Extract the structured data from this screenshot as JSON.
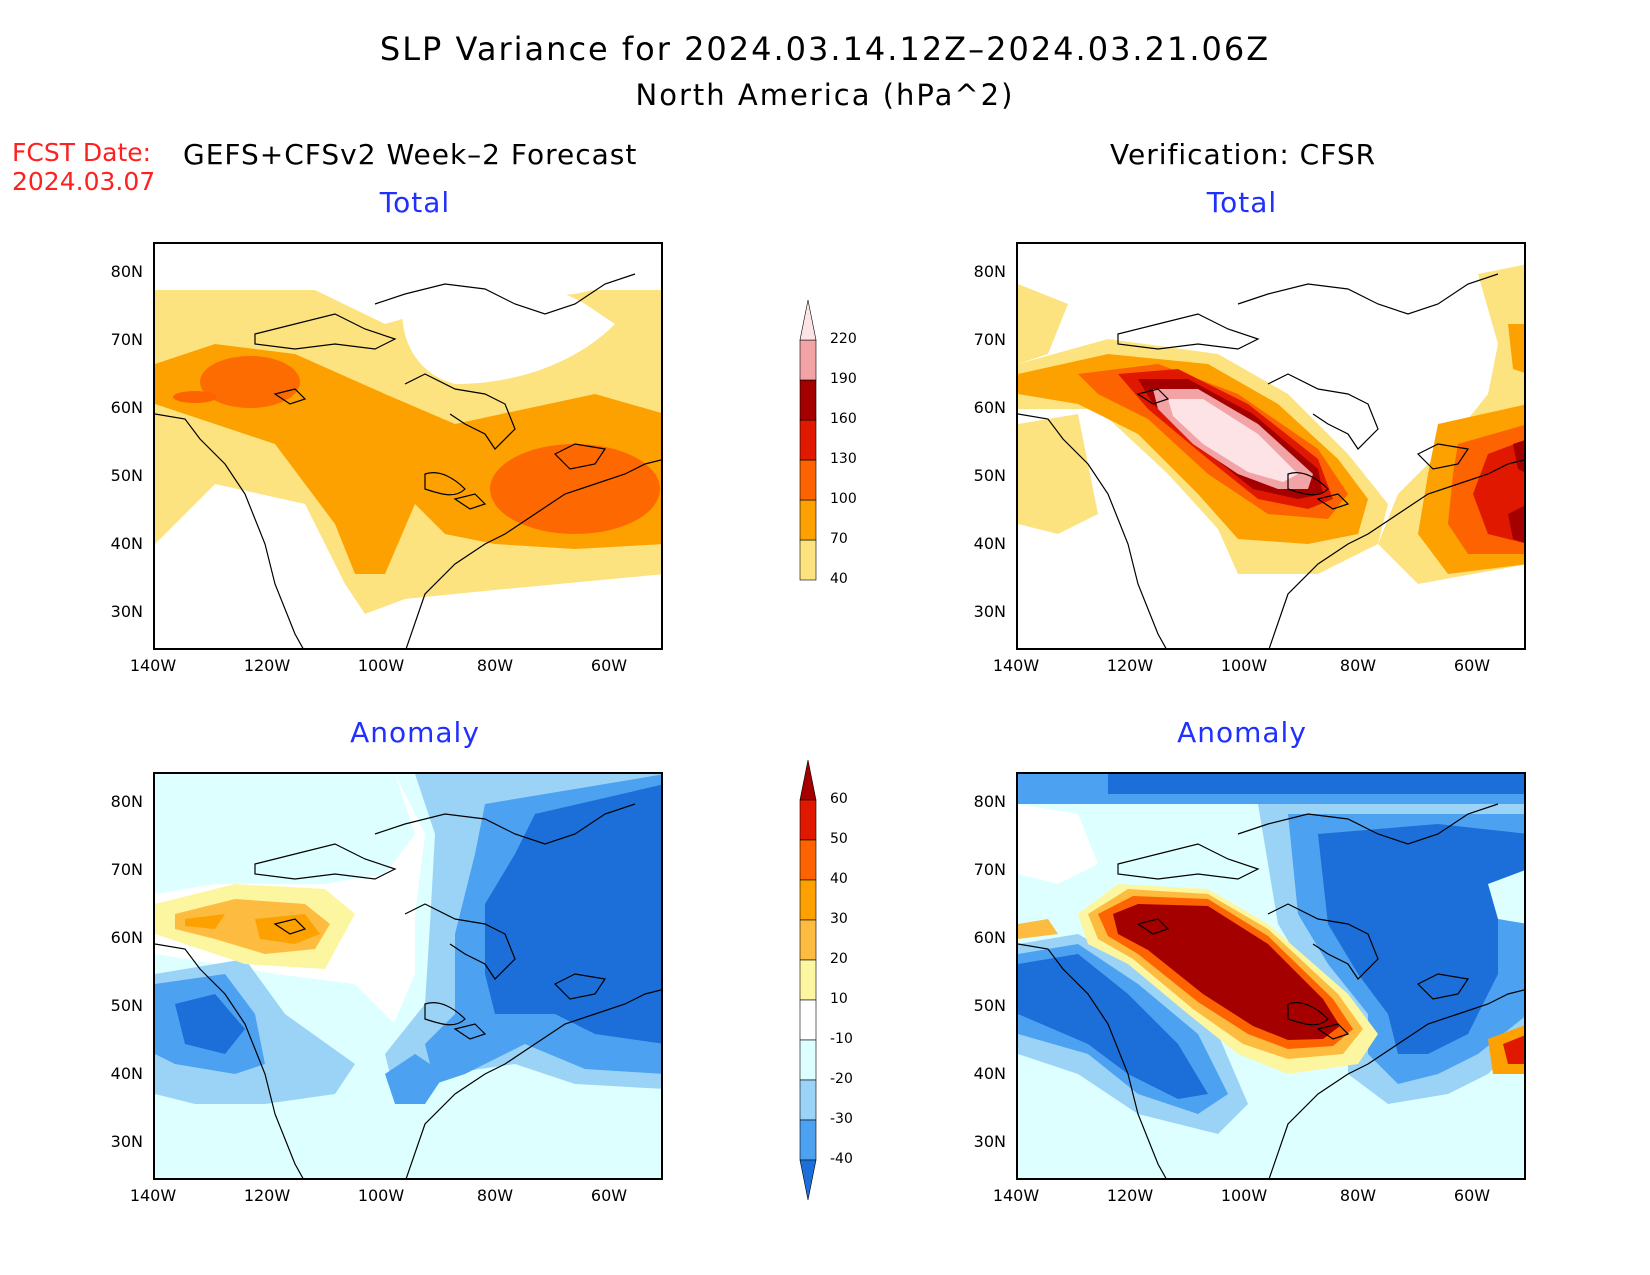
{
  "header": {
    "title_line1": "SLP Variance for 2024.03.14.12Z–2024.03.21.06Z",
    "title_line2": "North America (hPa^2)",
    "fcst_label": "FCST Date:",
    "fcst_date": "2024.03.07"
  },
  "columns": {
    "left_title": "GEFS+CFSv2 Week–2 Forecast",
    "right_title": "Verification: CFSR"
  },
  "panels": {
    "total_label": "Total",
    "anomaly_label": "Anomaly"
  },
  "axes": {
    "lat_ticks": [
      "80N",
      "70N",
      "60N",
      "50N",
      "40N",
      "30N"
    ],
    "lon_ticks": [
      "140W",
      "120W",
      "100W",
      "80W",
      "60W"
    ]
  },
  "colorbar_total": {
    "levels": [
      "40",
      "70",
      "100",
      "130",
      "160",
      "190",
      "220"
    ],
    "colors": [
      "#fde380",
      "#fda100",
      "#fd6300",
      "#e11800",
      "#a50000",
      "#f2a3a6",
      "#fde3e6"
    ]
  },
  "colorbar_anomaly": {
    "levels": [
      "60",
      "50",
      "40",
      "30",
      "20",
      "10",
      "-10",
      "-20",
      "-30",
      "-40"
    ],
    "colors_top_to_bottom": [
      "#a50000",
      "#e11800",
      "#fd6300",
      "#fda100",
      "#fdbb40",
      "#fdf6a0",
      "#ffffff",
      "#ddffff",
      "#9bd3f7",
      "#4ca1f0",
      "#1c6ed8"
    ]
  }
}
